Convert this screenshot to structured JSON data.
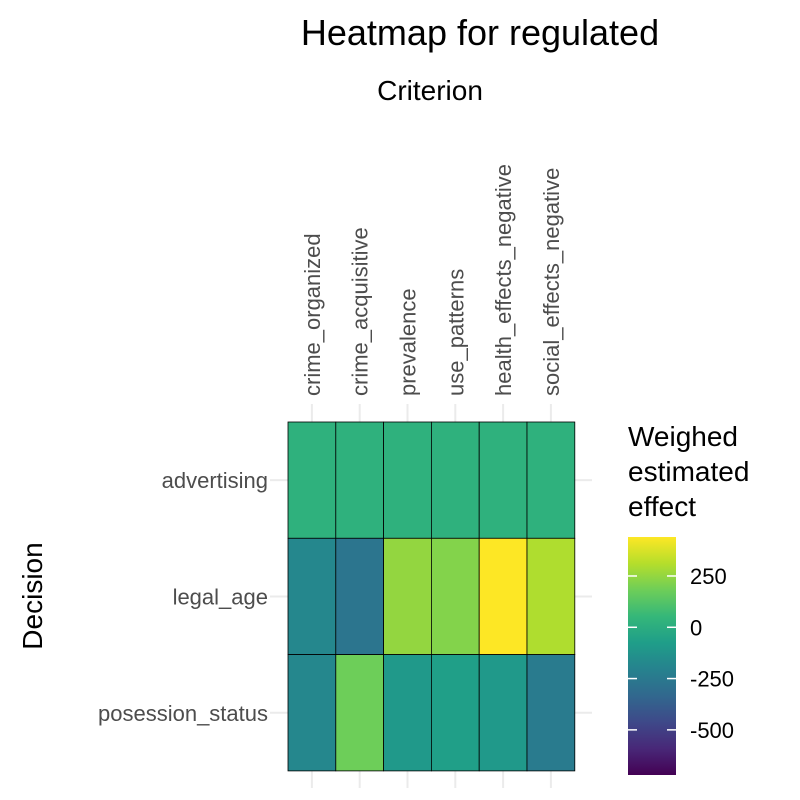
{
  "chart_data": {
    "type": "heatmap",
    "title": "Heatmap for regulated",
    "xlabel": "Criterion",
    "ylabel": "Decision",
    "x_axis_position": "top",
    "columns": [
      "crime_organized",
      "crime_acquisitive",
      "prevalence",
      "use_patterns",
      "health_effects_negative",
      "social_effects_negative"
    ],
    "rows": [
      "advertising",
      "legal_age",
      "posession_status"
    ],
    "values": [
      [
        20,
        20,
        20,
        20,
        20,
        20
      ],
      [
        -180,
        -270,
        250,
        220,
        440,
        300
      ],
      [
        -180,
        180,
        -100,
        -70,
        -100,
        -240
      ]
    ],
    "colorscale": "viridis",
    "color_range": [
      -720,
      440
    ],
    "legend": {
      "title_lines": [
        "Weighed",
        "estimated",
        "effect"
      ],
      "ticks": [
        250,
        0,
        -250,
        -500
      ],
      "tick_labels": [
        "250",
        "0",
        "-250",
        "-500"
      ],
      "placement": "right"
    },
    "grid": true
  }
}
